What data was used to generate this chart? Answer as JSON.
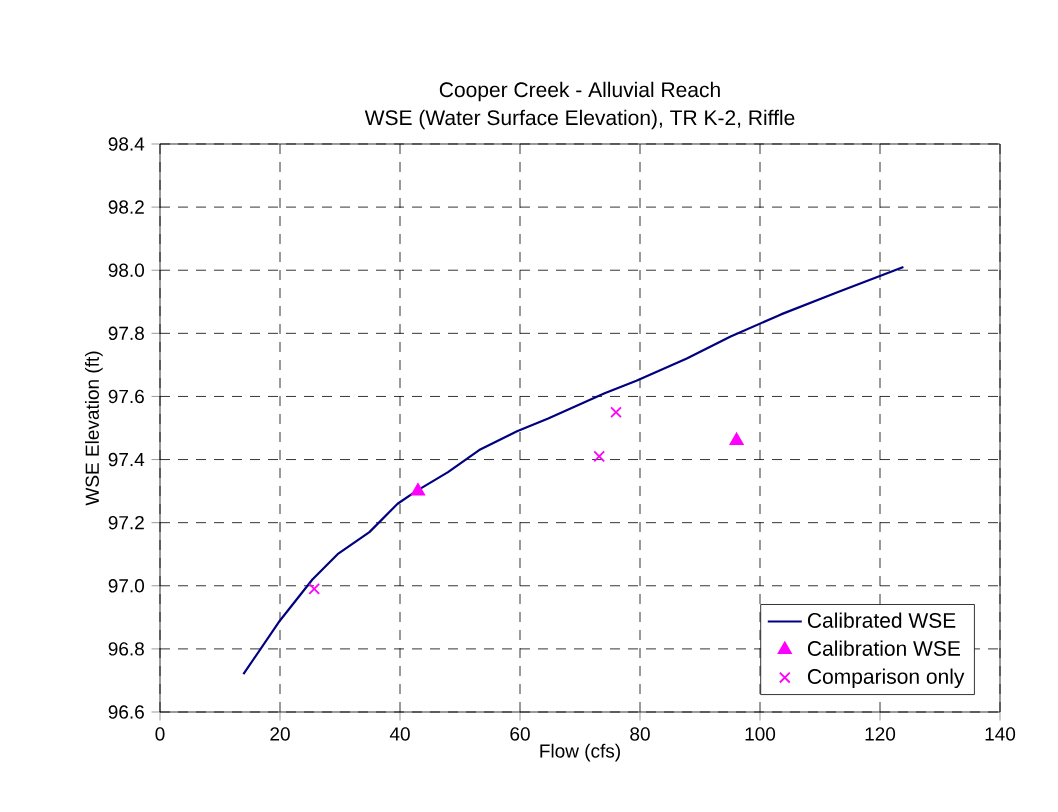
{
  "chart_data": {
    "type": "line",
    "title": "Cooper Creek - Alluvial Reach",
    "subtitle": "WSE (Water Surface Elevation), TR K-2, Riffle",
    "xlabel": "Flow (cfs)",
    "ylabel": "WSE Elevation (ft)",
    "xlim": [
      0,
      140
    ],
    "xticks": [
      0,
      20,
      40,
      60,
      80,
      100,
      120,
      140
    ],
    "ylim": [
      96.6,
      98.4
    ],
    "yticks": [
      {
        "value": 96.6,
        "label": "96.6"
      },
      {
        "value": 96.8,
        "label": "96.8"
      },
      {
        "value": 97.0,
        "label": "97.0"
      },
      {
        "value": 97.2,
        "label": "97.2"
      },
      {
        "value": 97.4,
        "label": "97.4"
      },
      {
        "value": 97.6,
        "label": "97.6"
      },
      {
        "value": 97.8,
        "label": "97.8"
      },
      {
        "value": 98.0,
        "label": "98.0"
      },
      {
        "value": 98.2,
        "label": "98.2"
      },
      {
        "value": 98.4,
        "label": "98.4"
      }
    ],
    "grid": true,
    "legend": "bottom right",
    "series": [
      {
        "name": "Calibrated WSE",
        "color": "#000080",
        "marker": "none",
        "line_style": "solid",
        "x": [
          13.9,
          20,
          25.4,
          29.6,
          34.9,
          39.6,
          42.7,
          48,
          53.2,
          59.5,
          64.7,
          74.1,
          79.4,
          87.8,
          95.1,
          103.5,
          112.9,
          123.9
        ],
        "values": [
          96.72,
          96.89,
          97.02,
          97.1,
          97.17,
          97.26,
          97.3,
          97.36,
          97.43,
          97.49,
          97.53,
          97.61,
          97.65,
          97.72,
          97.79,
          97.86,
          97.93,
          98.01
        ]
      },
      {
        "name": "Calibration WSE",
        "type": "scatter",
        "color": "#ff00ff",
        "marker": "triangle",
        "x": [
          43.0,
          96.1
        ],
        "values": [
          97.3,
          97.46
        ]
      },
      {
        "name": "Comparison only",
        "type": "scatter",
        "color": "#ff00ff",
        "marker": "cross",
        "x": [
          25.7,
          73.2,
          76.0
        ],
        "values": [
          96.99,
          97.41,
          97.55
        ]
      }
    ]
  }
}
